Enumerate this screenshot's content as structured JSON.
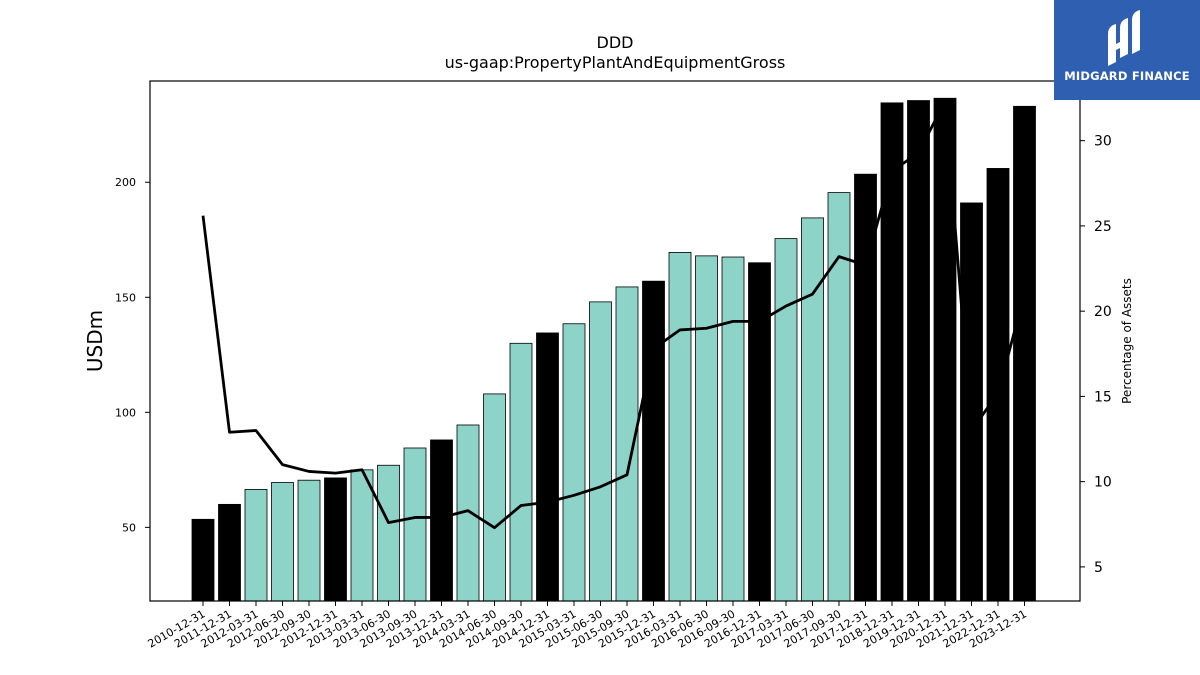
{
  "chart_data": {
    "type": "bar",
    "title": "DDD",
    "subtitle": "us-gaap:PropertyPlantAndEquipmentGross",
    "ylabel": "USDm",
    "y2label": "Percentage of Assets",
    "ylim": [
      18,
      244
    ],
    "y2lim": [
      3,
      33.5
    ],
    "yticks": [
      50,
      100,
      150,
      200
    ],
    "y2ticks": [
      5,
      10,
      15,
      20,
      25,
      30
    ],
    "categories": [
      "2010-12-31",
      "2011-12-31",
      "2012-03-31",
      "2012-06-30",
      "2012-09-30",
      "2012-12-31",
      "2013-03-31",
      "2013-06-30",
      "2013-09-30",
      "2013-12-31",
      "2014-03-31",
      "2014-06-30",
      "2014-09-30",
      "2014-12-31",
      "2015-03-31",
      "2015-06-30",
      "2015-09-30",
      "2015-12-31",
      "2016-03-31",
      "2016-06-30",
      "2016-09-30",
      "2016-12-31",
      "2017-03-31",
      "2017-06-30",
      "2017-09-30",
      "2017-12-31",
      "2018-12-31",
      "2019-12-31",
      "2020-12-31",
      "2021-12-31",
      "2022-12-31",
      "2023-12-31"
    ],
    "series": [
      {
        "values": [
          53.5,
          60,
          66.5,
          69.5,
          70.5,
          71.5,
          75,
          77,
          84.5,
          88,
          94.5,
          108,
          130,
          134.5,
          138.5,
          148,
          154.5,
          157,
          169.5,
          168,
          167.5,
          165,
          175.5,
          184.5,
          195.5,
          203.5,
          234.5,
          235.5,
          236.5,
          191,
          206,
          233
        ],
        "annual": [
          true,
          true,
          false,
          false,
          false,
          true,
          false,
          false,
          false,
          true,
          false,
          false,
          false,
          true,
          false,
          false,
          false,
          true,
          false,
          false,
          false,
          true,
          false,
          false,
          false,
          true,
          true,
          true,
          true,
          true,
          true,
          true
        ]
      },
      {
        "values": [
          25.6,
          12.9,
          13,
          11,
          10.6,
          10.5,
          10.7,
          7.6,
          7.9,
          7.9,
          8.3,
          7.3,
          8.6,
          8.8,
          9.2,
          9.7,
          10.4,
          17.8,
          18.9,
          19,
          19.4,
          19.4,
          20.3,
          21,
          23.2,
          22.7,
          28.2,
          29.3,
          32.3,
          13,
          15.2,
          21
        ]
      }
    ],
    "colors": {
      "annual": "#000000",
      "quarterly": "#8dd3c7",
      "line": "#000000"
    }
  },
  "logo": {
    "text": "MIDGARD FINANCE",
    "bg": "#2e5fb0"
  }
}
